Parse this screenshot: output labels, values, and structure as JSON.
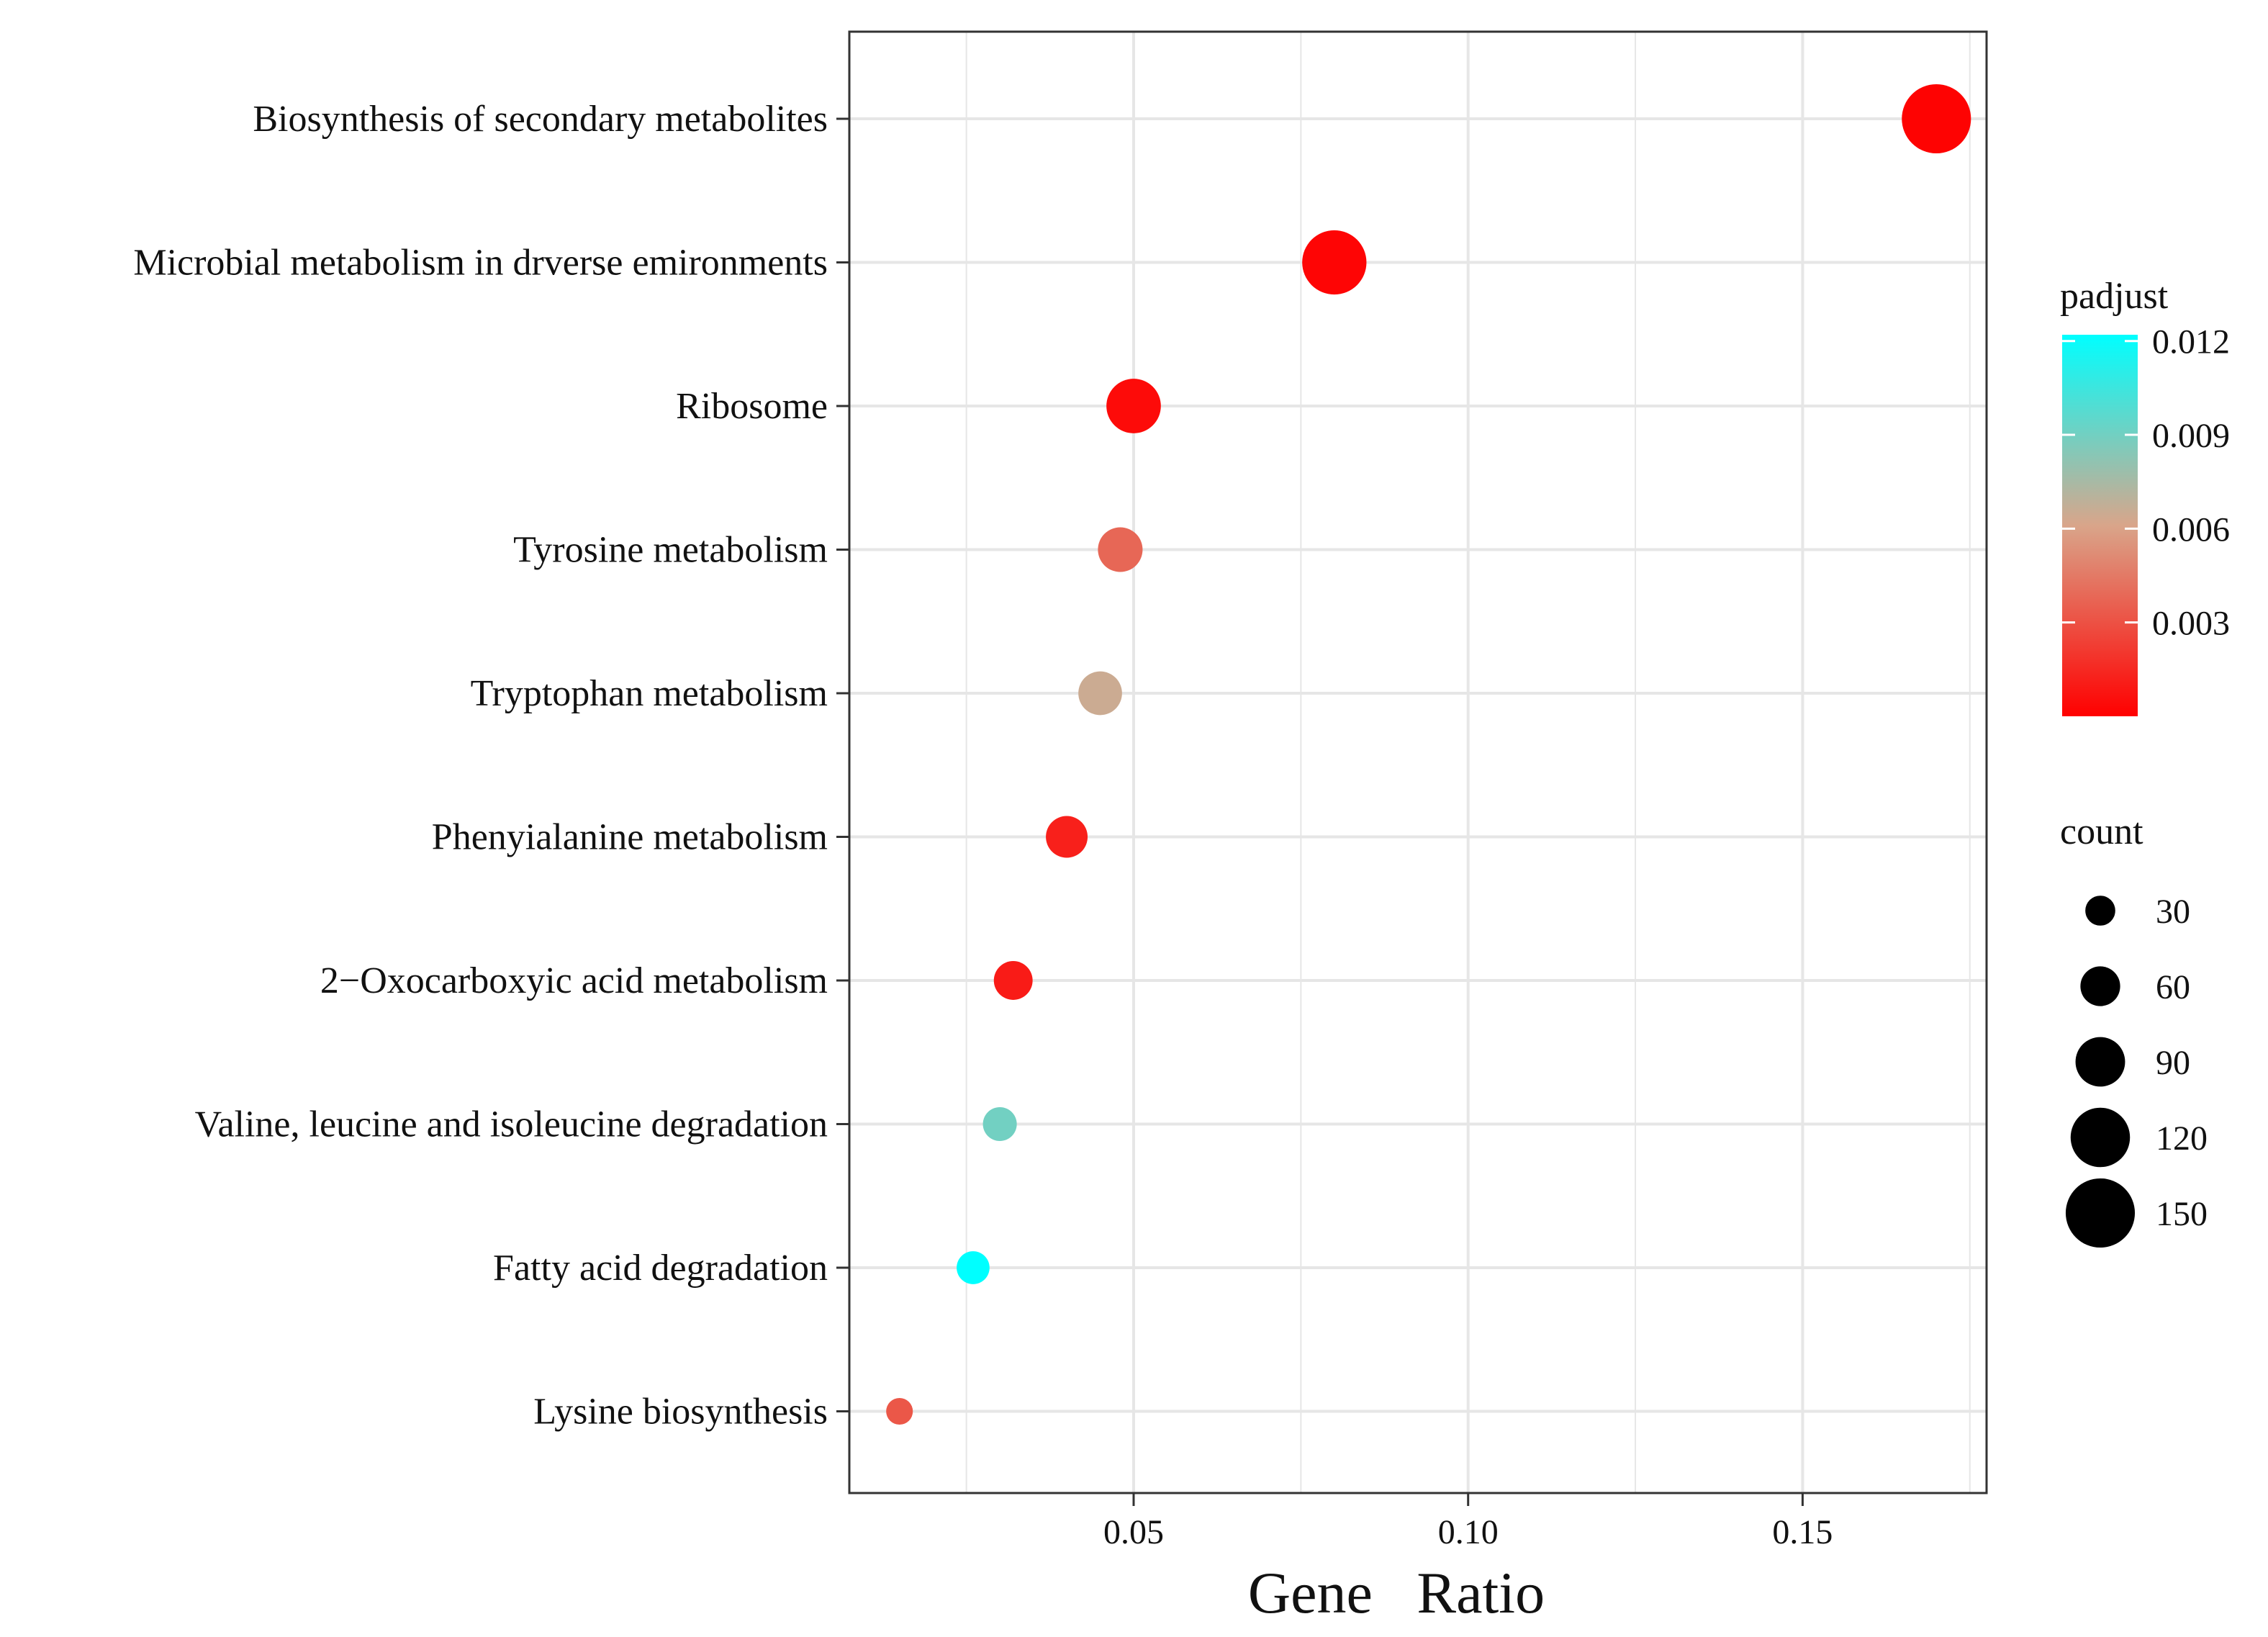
{
  "chart_data": {
    "type": "scatter",
    "title": "",
    "xlabel": "Gene   Ratio",
    "ylabel": "",
    "xlim": [
      0.0075,
      0.1775
    ],
    "x_ticks": [
      {
        "value": 0.05,
        "label": "0.05"
      },
      {
        "value": 0.1,
        "label": "0.10"
      },
      {
        "value": 0.15,
        "label": "0.15"
      }
    ],
    "x_minor_ticks": [
      0.025,
      0.075,
      0.125,
      0.175
    ],
    "grid": true,
    "legend_placement": "right",
    "categories": [
      "Biosynthesis of secondary metabolites",
      "Microbial metabolism in drverse emironments",
      "Ribosome",
      "Tyrosine metabolism",
      "Tryptophan metabolism",
      "Phenyialanine metabolism",
      "2−Oxocarboxyic acid metabolism",
      "Valine, leucine and isoleucine degradation",
      "Fatty acid degradation",
      "Lysine biosynthesis"
    ],
    "points": [
      {
        "category": "Biosynthesis of secondary metabolites",
        "gene_ratio": 0.17,
        "count": 150,
        "padjust": 0.0001
      },
      {
        "category": "Microbial metabolism in drverse emironments",
        "gene_ratio": 0.08,
        "count": 135,
        "padjust": 0.0002
      },
      {
        "category": "Ribosome",
        "gene_ratio": 0.05,
        "count": 105,
        "padjust": 0.0004
      },
      {
        "category": "Tyrosine metabolism",
        "gene_ratio": 0.048,
        "count": 75,
        "padjust": 0.0038
      },
      {
        "category": "Tryptophan metabolism",
        "gene_ratio": 0.045,
        "count": 72,
        "padjust": 0.0065
      },
      {
        "category": "Phenyialanine metabolism",
        "gene_ratio": 0.04,
        "count": 66,
        "padjust": 0.0012
      },
      {
        "category": "2−Oxocarboxyic acid metabolism",
        "gene_ratio": 0.032,
        "count": 57,
        "padjust": 0.001
      },
      {
        "category": "Valine, leucine and isoleucine degradation",
        "gene_ratio": 0.03,
        "count": 42,
        "padjust": 0.009
      },
      {
        "category": "Fatty acid degradation",
        "gene_ratio": 0.026,
        "count": 39,
        "padjust": 0.0122
      },
      {
        "category": "Lysine biosynthesis",
        "gene_ratio": 0.015,
        "count": 20,
        "padjust": 0.0032
      }
    ],
    "color_legend": {
      "title": "padjust",
      "min": 0.0,
      "max": 0.0122,
      "color_low": "#ff0000",
      "color_mid": "#d9a58a",
      "color_high": "#00ffff",
      "ticks": [
        {
          "value": 0.003,
          "label": "0.003"
        },
        {
          "value": 0.006,
          "label": "0.006"
        },
        {
          "value": 0.009,
          "label": "0.009"
        },
        {
          "value": 0.012,
          "label": "0.012"
        }
      ]
    },
    "size_legend": {
      "title": "count",
      "entries": [
        {
          "value": 30,
          "label": "30"
        },
        {
          "value": 60,
          "label": "60"
        },
        {
          "value": 90,
          "label": "90"
        },
        {
          "value": 120,
          "label": "120"
        },
        {
          "value": 150,
          "label": "150"
        }
      ]
    },
    "colors": {
      "grid": "#e6e6e6",
      "panel_border": "#333333",
      "text": "#111111",
      "legend_dot": "#000000"
    }
  }
}
